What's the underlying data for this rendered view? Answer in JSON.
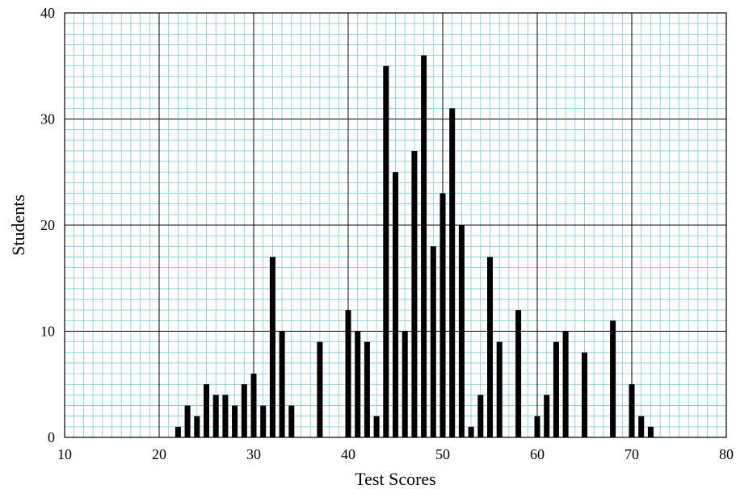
{
  "chart_data": {
    "type": "bar",
    "title": "",
    "xlabel": "Test Scores",
    "ylabel": "Students",
    "xlim": [
      10,
      80
    ],
    "ylim": [
      0,
      40
    ],
    "xticks": [
      10,
      20,
      30,
      40,
      50,
      60,
      70,
      80
    ],
    "yticks": [
      0,
      10,
      20,
      30,
      40
    ],
    "grid": true,
    "minor_grid": true,
    "colors": {
      "bar": "#000000",
      "minor_grid": "#7fc8d8",
      "major_grid": "#000000",
      "background": "#ffffff"
    },
    "x": [
      22,
      23,
      24,
      25,
      26,
      27,
      28,
      29,
      30,
      31,
      32,
      33,
      34,
      37,
      40,
      41,
      42,
      43,
      44,
      45,
      46,
      47,
      48,
      49,
      50,
      51,
      52,
      53,
      54,
      55,
      56,
      58,
      60,
      61,
      62,
      63,
      65,
      68,
      70,
      71,
      72
    ],
    "values": [
      1,
      3,
      2,
      5,
      4,
      4,
      3,
      5,
      6,
      3,
      17,
      10,
      3,
      9,
      12,
      10,
      9,
      2,
      35,
      25,
      10,
      27,
      36,
      18,
      23,
      31,
      20,
      1,
      4,
      17,
      9,
      12,
      2,
      4,
      9,
      10,
      8,
      11,
      5,
      2,
      1
    ]
  }
}
